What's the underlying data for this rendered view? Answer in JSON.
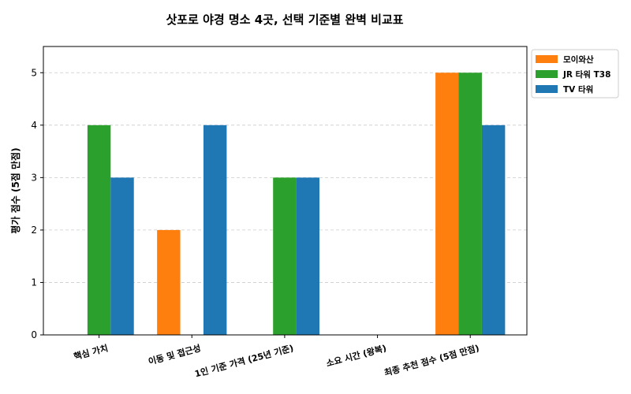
{
  "chart_data": {
    "type": "bar",
    "title": "삿포로 야경 명소 4곳, 선택 기준별 완벽 비교표",
    "xlabel": "",
    "ylabel": "평가 점수 (5점 만점)",
    "categories": [
      "핵심 가치",
      "이동 및 접근성",
      "1인 기준 가격 (25년 기준)",
      "소요 시간 (왕복)",
      "최종 추천 점수 (5점 만점)"
    ],
    "series": [
      {
        "name": "모이와산",
        "color": "#ff7f0e",
        "values": [
          0,
          2,
          0,
          0,
          5
        ]
      },
      {
        "name": "JR 타워 T38",
        "color": "#2ca02c",
        "values": [
          4,
          0,
          3,
          0,
          5
        ]
      },
      {
        "name": "TV 타워",
        "color": "#1f77b4",
        "values": [
          3,
          4,
          3,
          0,
          4
        ]
      }
    ],
    "ylim": [
      0,
      5.5
    ],
    "yticks": [
      "0",
      "1",
      "2",
      "3",
      "4",
      "5"
    ],
    "grid": "y-dashed",
    "legend_position": "upper-right-outside"
  }
}
